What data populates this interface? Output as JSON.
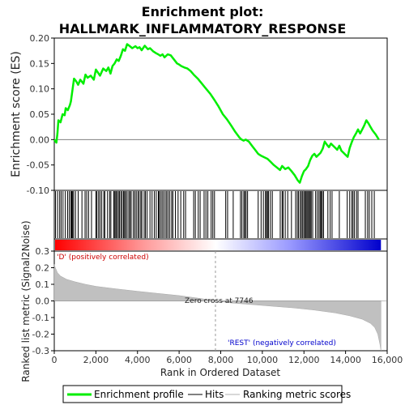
{
  "chart_data": {
    "type": "line",
    "title_line1": "Enrichment plot:",
    "title_line2": "HALLMARK_INFLAMMATORY_RESPONSE",
    "colors": {
      "es_line": "#00ee00",
      "hits": "#000000",
      "metric_fill": "#c0c0c0",
      "zero_line": "#808080",
      "pos_label": "#cc0000",
      "neg_label": "#0000cc",
      "bar_red": "#ff0000",
      "bar_white": "#ffffff",
      "bar_blue": "#0000cc"
    },
    "es_panel": {
      "ylabel": "Enrichment score (ES)",
      "ylim": [
        -0.1,
        0.2
      ],
      "yticks": [
        "0.20",
        "0.15",
        "0.10",
        "0.05",
        "0.00",
        "-0.05",
        "-0.10"
      ],
      "grid": false,
      "points": [
        [
          0,
          0.0
        ],
        [
          100,
          -0.006
        ],
        [
          150,
          0.012
        ],
        [
          200,
          0.038
        ],
        [
          300,
          0.034
        ],
        [
          400,
          0.05
        ],
        [
          500,
          0.048
        ],
        [
          550,
          0.062
        ],
        [
          650,
          0.058
        ],
        [
          750,
          0.068
        ],
        [
          800,
          0.075
        ],
        [
          850,
          0.09
        ],
        [
          950,
          0.12
        ],
        [
          1050,
          0.115
        ],
        [
          1150,
          0.108
        ],
        [
          1250,
          0.118
        ],
        [
          1400,
          0.11
        ],
        [
          1500,
          0.128
        ],
        [
          1600,
          0.122
        ],
        [
          1750,
          0.126
        ],
        [
          1900,
          0.118
        ],
        [
          2000,
          0.138
        ],
        [
          2100,
          0.132
        ],
        [
          2200,
          0.126
        ],
        [
          2350,
          0.14
        ],
        [
          2500,
          0.135
        ],
        [
          2600,
          0.142
        ],
        [
          2700,
          0.13
        ],
        [
          2800,
          0.145
        ],
        [
          2900,
          0.15
        ],
        [
          3000,
          0.158
        ],
        [
          3100,
          0.155
        ],
        [
          3200,
          0.165
        ],
        [
          3300,
          0.178
        ],
        [
          3400,
          0.175
        ],
        [
          3500,
          0.188
        ],
        [
          3600,
          0.185
        ],
        [
          3750,
          0.18
        ],
        [
          3900,
          0.184
        ],
        [
          4000,
          0.18
        ],
        [
          4100,
          0.182
        ],
        [
          4200,
          0.176
        ],
        [
          4350,
          0.185
        ],
        [
          4500,
          0.178
        ],
        [
          4600,
          0.18
        ],
        [
          4750,
          0.174
        ],
        [
          4900,
          0.17
        ],
        [
          5000,
          0.168
        ],
        [
          5100,
          0.165
        ],
        [
          5200,
          0.168
        ],
        [
          5300,
          0.162
        ],
        [
          5450,
          0.168
        ],
        [
          5600,
          0.166
        ],
        [
          5750,
          0.158
        ],
        [
          5900,
          0.15
        ],
        [
          6000,
          0.148
        ],
        [
          6100,
          0.145
        ],
        [
          6250,
          0.142
        ],
        [
          6400,
          0.14
        ],
        [
          6550,
          0.135
        ],
        [
          6700,
          0.128
        ],
        [
          6900,
          0.12
        ],
        [
          7100,
          0.11
        ],
        [
          7300,
          0.1
        ],
        [
          7500,
          0.09
        ],
        [
          7700,
          0.078
        ],
        [
          7900,
          0.065
        ],
        [
          8100,
          0.05
        ],
        [
          8300,
          0.04
        ],
        [
          8500,
          0.028
        ],
        [
          8700,
          0.015
        ],
        [
          8900,
          0.004
        ],
        [
          9000,
          0.0
        ],
        [
          9100,
          -0.002
        ],
        [
          9200,
          0.0
        ],
        [
          9350,
          -0.004
        ],
        [
          9500,
          -0.012
        ],
        [
          9650,
          -0.02
        ],
        [
          9800,
          -0.028
        ],
        [
          9950,
          -0.032
        ],
        [
          10100,
          -0.035
        ],
        [
          10250,
          -0.038
        ],
        [
          10400,
          -0.044
        ],
        [
          10550,
          -0.05
        ],
        [
          10700,
          -0.055
        ],
        [
          10850,
          -0.06
        ],
        [
          10950,
          -0.052
        ],
        [
          11100,
          -0.058
        ],
        [
          11250,
          -0.055
        ],
        [
          11400,
          -0.062
        ],
        [
          11550,
          -0.07
        ],
        [
          11700,
          -0.08
        ],
        [
          11800,
          -0.085
        ],
        [
          11900,
          -0.072
        ],
        [
          12000,
          -0.062
        ],
        [
          12100,
          -0.058
        ],
        [
          12200,
          -0.052
        ],
        [
          12300,
          -0.04
        ],
        [
          12400,
          -0.032
        ],
        [
          12500,
          -0.028
        ],
        [
          12600,
          -0.034
        ],
        [
          12700,
          -0.03
        ],
        [
          12800,
          -0.026
        ],
        [
          12900,
          -0.018
        ],
        [
          13000,
          -0.004
        ],
        [
          13100,
          -0.01
        ],
        [
          13200,
          -0.015
        ],
        [
          13300,
          -0.008
        ],
        [
          13400,
          -0.012
        ],
        [
          13500,
          -0.016
        ],
        [
          13600,
          -0.02
        ],
        [
          13700,
          -0.012
        ],
        [
          13800,
          -0.022
        ],
        [
          13900,
          -0.026
        ],
        [
          14000,
          -0.03
        ],
        [
          14100,
          -0.034
        ],
        [
          14200,
          -0.016
        ],
        [
          14300,
          -0.005
        ],
        [
          14400,
          0.005
        ],
        [
          14500,
          0.012
        ],
        [
          14600,
          0.02
        ],
        [
          14700,
          0.012
        ],
        [
          14800,
          0.02
        ],
        [
          14900,
          0.028
        ],
        [
          15000,
          0.038
        ],
        [
          15100,
          0.032
        ],
        [
          15200,
          0.025
        ],
        [
          15300,
          0.018
        ],
        [
          15450,
          0.01
        ],
        [
          15600,
          0.0
        ]
      ]
    },
    "hits": [
      60,
      160,
      260,
      330,
      420,
      530,
      640,
      720,
      800,
      840,
      880,
      930,
      1020,
      1150,
      1330,
      1480,
      1560,
      1650,
      1790,
      2000,
      2050,
      2130,
      2200,
      2280,
      2380,
      2430,
      2560,
      2660,
      2720,
      2860,
      2910,
      2960,
      3010,
      3080,
      3130,
      3200,
      3260,
      3330,
      3380,
      3430,
      3500,
      3580,
      3640,
      3700,
      3800,
      3870,
      3940,
      4020,
      4080,
      4160,
      4210,
      4320,
      4380,
      4460,
      4600,
      4700,
      4810,
      4900,
      5000,
      5040,
      5110,
      5180,
      5250,
      5330,
      5400,
      5470,
      5550,
      5640,
      5700,
      5820,
      5950,
      6080,
      6220,
      6310,
      6700,
      6780,
      6920,
      7010,
      7200,
      7290,
      7380,
      7540,
      7620,
      7700,
      8240,
      8330,
      8600,
      8950,
      9020,
      9110,
      9160,
      9220,
      9290,
      9800,
      9940,
      10050,
      10150,
      10200,
      10250,
      10300,
      10390,
      10480,
      10860,
      10950,
      11000,
      11100,
      11220,
      11400,
      11600,
      11680,
      11740,
      11820,
      11880,
      11940,
      12000,
      12060,
      12100,
      12150,
      12200,
      12260,
      12300,
      12350,
      12420,
      12560,
      12640,
      12720,
      12780,
      12830,
      12880,
      12940,
      13150,
      13260,
      13350,
      13700,
      14080,
      14200,
      14300,
      14360,
      14430,
      14530,
      14600,
      14950,
      15060,
      15140,
      15260,
      15380
    ],
    "metric_panel": {
      "ylabel": "Ranked list metric (Signal2Noise)",
      "xlabel": "Rank in Ordered Dataset",
      "ylim": [
        -0.3,
        0.3
      ],
      "yticks": [
        "0.3",
        "0.2",
        "0.1",
        "0.0",
        "-0.1",
        "-0.2",
        "-0.3"
      ],
      "xticks": [
        "0",
        "2,000",
        "4,000",
        "6,000",
        "8,000",
        "10,000",
        "12,000",
        "14,000",
        "16,000"
      ],
      "xmax": 16000,
      "n_genes": 15700,
      "zero_cross": 7746,
      "zero_cross_label": "Zero cross at 7746",
      "pos_label": "'D' (positively correlated)",
      "neg_label": "'REST' (negatively correlated)",
      "profile": [
        [
          0,
          0.22
        ],
        [
          50,
          0.2
        ],
        [
          150,
          0.17
        ],
        [
          300,
          0.15
        ],
        [
          600,
          0.13
        ],
        [
          1000,
          0.115
        ],
        [
          1500,
          0.1
        ],
        [
          2000,
          0.088
        ],
        [
          3000,
          0.072
        ],
        [
          4000,
          0.058
        ],
        [
          5000,
          0.045
        ],
        [
          6000,
          0.032
        ],
        [
          7000,
          0.015
        ],
        [
          7746,
          0.0
        ],
        [
          8500,
          -0.012
        ],
        [
          9500,
          -0.022
        ],
        [
          10500,
          -0.032
        ],
        [
          11500,
          -0.042
        ],
        [
          12500,
          -0.055
        ],
        [
          13500,
          -0.072
        ],
        [
          14200,
          -0.09
        ],
        [
          14800,
          -0.11
        ],
        [
          15200,
          -0.135
        ],
        [
          15400,
          -0.16
        ],
        [
          15550,
          -0.2
        ],
        [
          15650,
          -0.26
        ],
        [
          15700,
          -0.3
        ]
      ]
    },
    "legend": {
      "items": [
        {
          "label": "Enrichment profile",
          "color": "#00ee00"
        },
        {
          "label": "Hits",
          "color": "#808080"
        },
        {
          "label": "Ranking metric scores",
          "color": "#d8d8d8"
        }
      ]
    }
  }
}
